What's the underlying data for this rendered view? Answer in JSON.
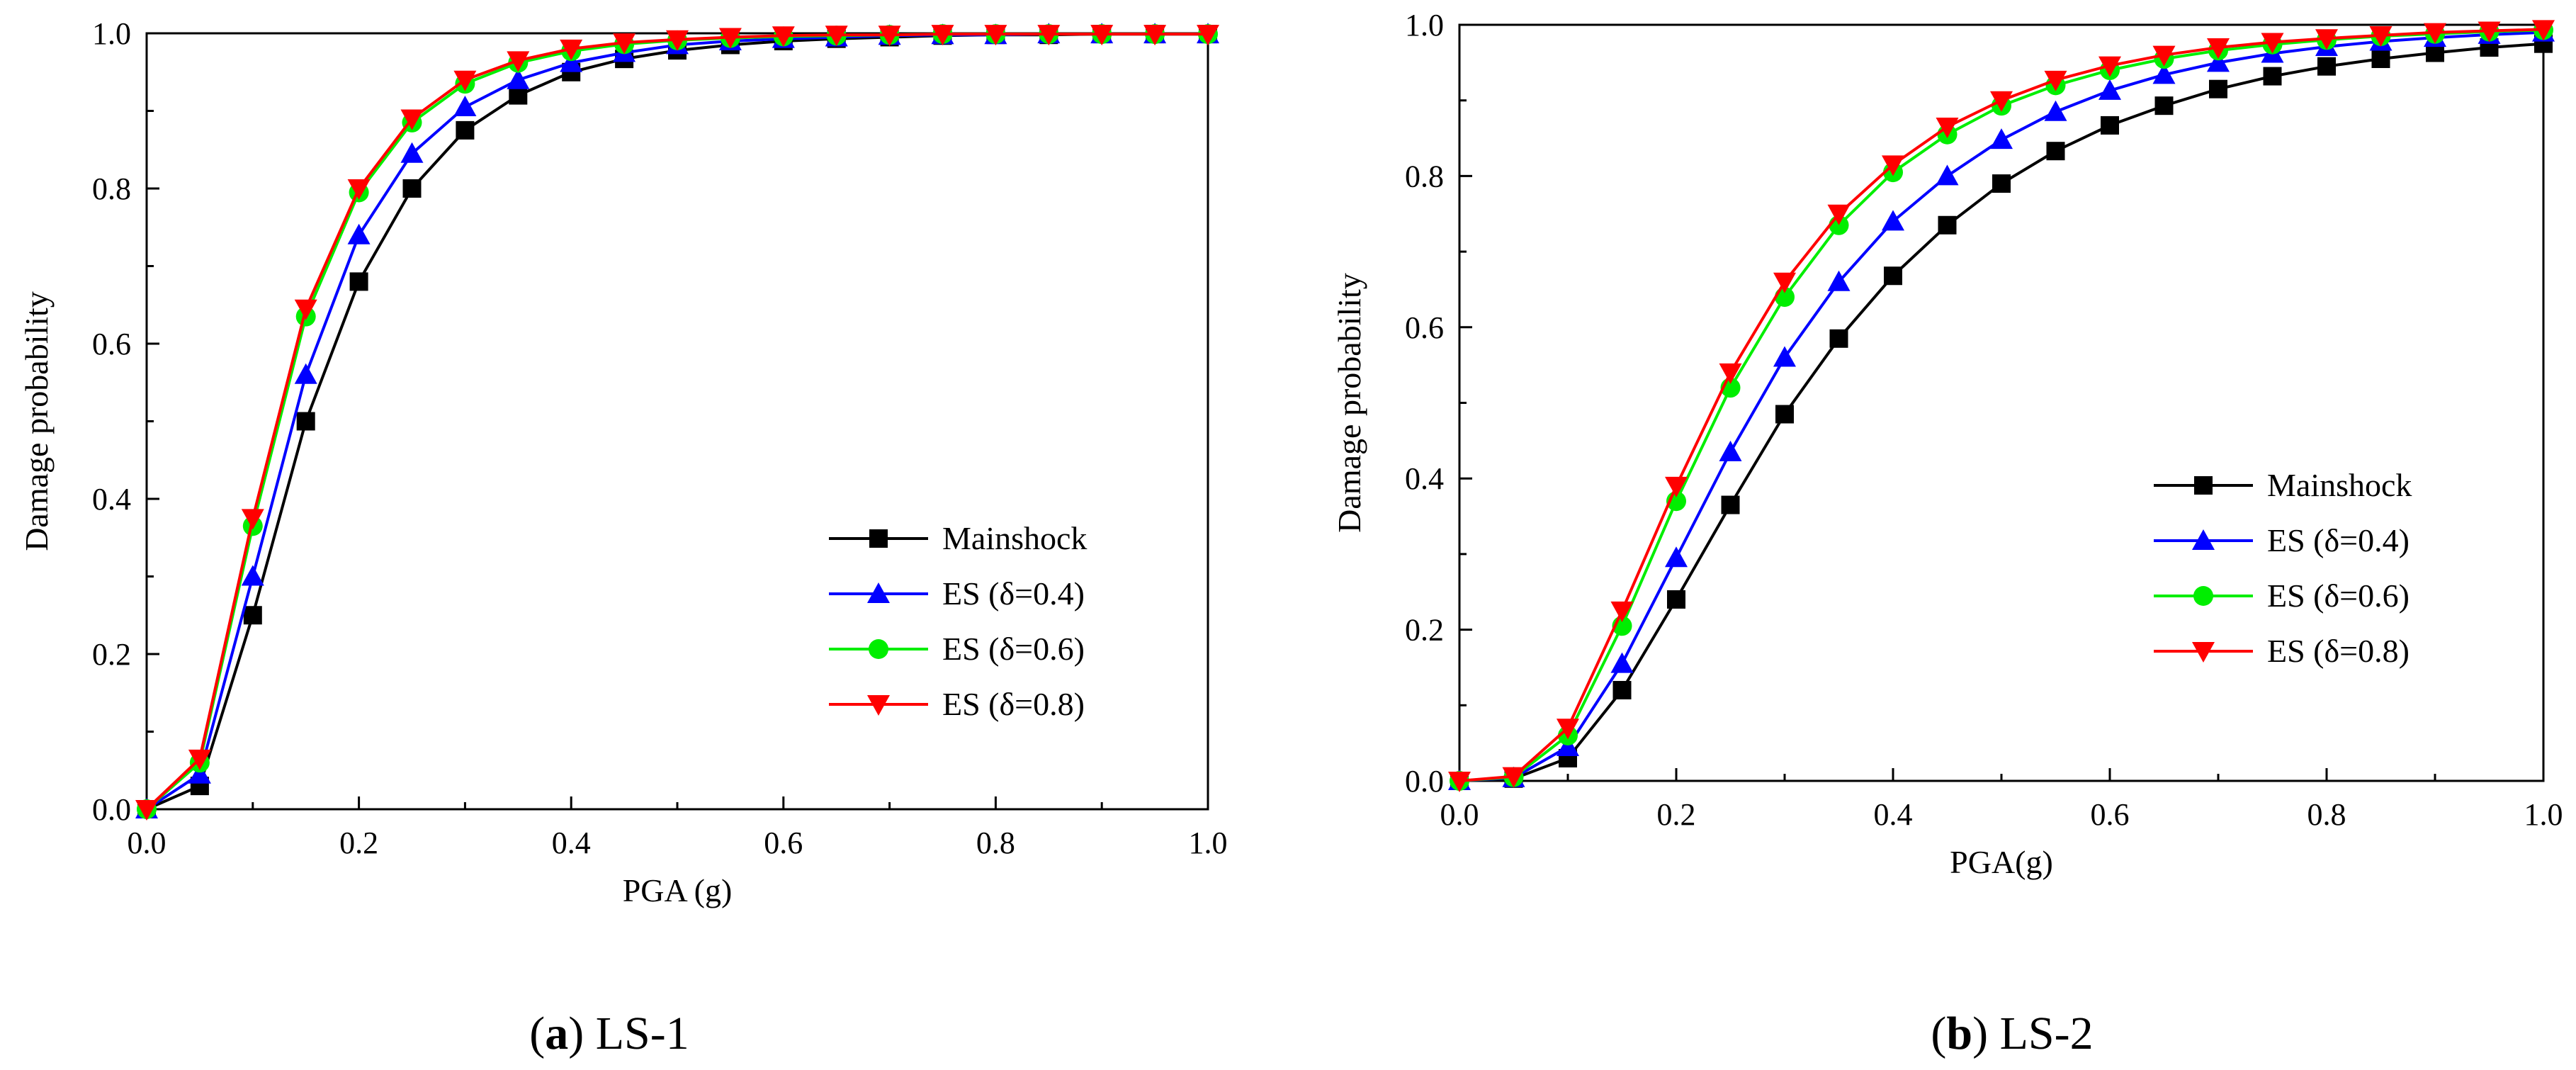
{
  "chart_data": [
    {
      "type": "line",
      "panel_label": "a",
      "caption": "LS-1",
      "title": "",
      "xlabel": "PGA (g)",
      "ylabel": "Damage probability",
      "xlim": [
        0.0,
        1.0
      ],
      "ylim": [
        0.0,
        1.0
      ],
      "x_ticks": [
        "0.0",
        "0.2",
        "0.4",
        "0.6",
        "0.8",
        "1.0"
      ],
      "y_ticks": [
        "0.0",
        "0.2",
        "0.4",
        "0.6",
        "0.8",
        "1.0"
      ],
      "grid": false,
      "legend_position": "lower-right",
      "x": [
        0,
        0.05,
        0.1,
        0.15,
        0.2,
        0.25,
        0.3,
        0.35,
        0.4,
        0.45,
        0.5,
        0.55,
        0.6,
        0.65,
        0.7,
        0.75,
        0.8,
        0.85,
        0.9,
        0.95,
        1.0
      ],
      "series": [
        {
          "name": "Mainshock",
          "color": "#000000",
          "marker": "square",
          "values": [
            0,
            0.03,
            0.25,
            0.5,
            0.68,
            0.8,
            0.875,
            0.92,
            0.95,
            0.967,
            0.978,
            0.985,
            0.99,
            0.993,
            0.995,
            0.997,
            0.998,
            0.998,
            0.999,
            0.999,
            0.999
          ]
        },
        {
          "name": "ES (δ=0.4)",
          "color": "#0000ff",
          "marker": "triangle-up",
          "values": [
            0,
            0.045,
            0.3,
            0.56,
            0.74,
            0.845,
            0.905,
            0.94,
            0.962,
            0.975,
            0.985,
            0.99,
            0.993,
            0.995,
            0.997,
            0.998,
            0.998,
            0.999,
            0.999,
            0.999,
            0.999
          ]
        },
        {
          "name": "ES (δ=0.6)",
          "color": "#00ee00",
          "marker": "circle",
          "values": [
            0,
            0.06,
            0.365,
            0.635,
            0.795,
            0.885,
            0.935,
            0.962,
            0.977,
            0.986,
            0.991,
            0.994,
            0.996,
            0.997,
            0.998,
            0.999,
            0.999,
            0.999,
            0.999,
            0.999,
            0.999
          ]
        },
        {
          "name": "ES (δ=0.8)",
          "color": "#ff0000",
          "marker": "triangle-down",
          "values": [
            0,
            0.065,
            0.375,
            0.645,
            0.8,
            0.89,
            0.94,
            0.965,
            0.98,
            0.988,
            0.992,
            0.995,
            0.997,
            0.998,
            0.998,
            0.999,
            0.999,
            0.999,
            0.999,
            0.999,
            0.999
          ]
        }
      ]
    },
    {
      "type": "line",
      "panel_label": "b",
      "caption": "LS-2",
      "title": "",
      "xlabel": "PGA(g)",
      "ylabel": "Damage probability",
      "xlim": [
        0.0,
        1.0
      ],
      "ylim": [
        0.0,
        1.0
      ],
      "x_ticks": [
        "0.0",
        "0.2",
        "0.4",
        "0.6",
        "0.8",
        "1.0"
      ],
      "y_ticks": [
        "0.0",
        "0.2",
        "0.4",
        "0.6",
        "0.8",
        "1.0"
      ],
      "grid": false,
      "legend_position": "center-right",
      "x": [
        0,
        0.05,
        0.1,
        0.15,
        0.2,
        0.25,
        0.3,
        0.35,
        0.4,
        0.45,
        0.5,
        0.55,
        0.6,
        0.65,
        0.7,
        0.75,
        0.8,
        0.85,
        0.9,
        0.95,
        1.0
      ],
      "series": [
        {
          "name": "Mainshock",
          "color": "#000000",
          "marker": "square",
          "values": [
            0,
            0.003,
            0.03,
            0.12,
            0.24,
            0.365,
            0.485,
            0.585,
            0.668,
            0.735,
            0.79,
            0.833,
            0.867,
            0.893,
            0.915,
            0.932,
            0.945,
            0.955,
            0.963,
            0.97,
            0.975
          ]
        },
        {
          "name": "ES (δ=0.4)",
          "color": "#0000ff",
          "marker": "triangle-up",
          "values": [
            0,
            0.004,
            0.045,
            0.155,
            0.295,
            0.435,
            0.56,
            0.66,
            0.74,
            0.8,
            0.848,
            0.885,
            0.913,
            0.934,
            0.95,
            0.962,
            0.971,
            0.978,
            0.983,
            0.987,
            0.99
          ]
        },
        {
          "name": "ES (δ=0.6)",
          "color": "#00ee00",
          "marker": "circle",
          "values": [
            0,
            0.005,
            0.06,
            0.205,
            0.37,
            0.52,
            0.64,
            0.735,
            0.805,
            0.855,
            0.893,
            0.92,
            0.94,
            0.955,
            0.966,
            0.974,
            0.98,
            0.985,
            0.988,
            0.991,
            0.993
          ]
        },
        {
          "name": "ES (δ=0.8)",
          "color": "#ff0000",
          "marker": "triangle-down",
          "values": [
            0,
            0.006,
            0.07,
            0.225,
            0.39,
            0.54,
            0.66,
            0.75,
            0.815,
            0.865,
            0.9,
            0.927,
            0.946,
            0.96,
            0.97,
            0.977,
            0.982,
            0.986,
            0.99,
            0.992,
            0.994
          ]
        }
      ]
    }
  ]
}
